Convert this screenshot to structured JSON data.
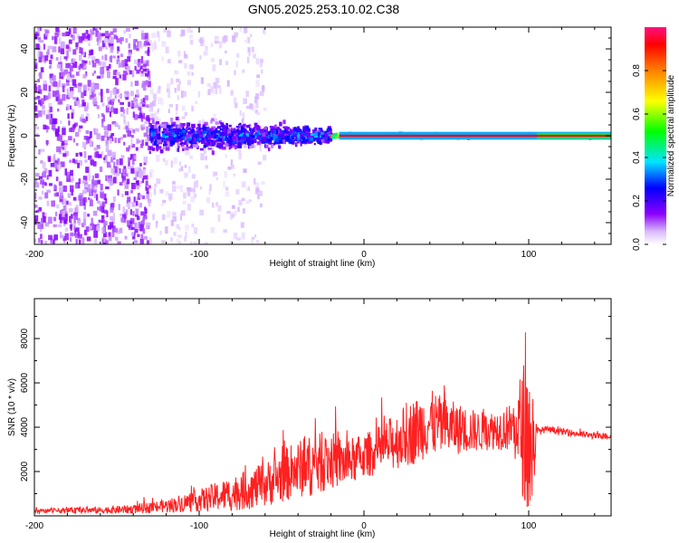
{
  "title": "GN05.2025.253.10.02.C38",
  "chart_data": [
    {
      "type": "heatmap",
      "title": "GN05.2025.253.10.02.C38",
      "xlabel": "Height of straight line (km)",
      "ylabel": "Frequency (Hz)",
      "xlim": [
        -200,
        150
      ],
      "ylim": [
        -50,
        50
      ],
      "xticks": [
        -200,
        -100,
        0,
        100
      ],
      "yticks": [
        -40,
        -20,
        0,
        20,
        40
      ],
      "colorbar": {
        "label": "Normalized spectral amplitude",
        "range": [
          0,
          1
        ],
        "ticks": [
          "0.0",
          "0.2",
          "0.4",
          "0.6",
          "0.8"
        ],
        "tick_values": [
          0,
          0.2,
          0.4,
          0.6,
          0.8
        ],
        "colormap": [
          "#ffffff",
          "#8a00ff",
          "#0000ff",
          "#00e5ff",
          "#00ff00",
          "#ffff00",
          "#ff8000",
          "#ff0000",
          "#ff0080"
        ]
      },
      "description_regions": [
        {
          "x_range": [
            -200,
            -130
          ],
          "freq_spread": 50,
          "amplitude": 0.12
        },
        {
          "x_range": [
            -130,
            -60
          ],
          "freq_spread": 50,
          "amplitude": 0.05
        },
        {
          "x_range": [
            -130,
            -20
          ],
          "freq_spread": 12,
          "amplitude": 0.3
        },
        {
          "x_range": [
            -20,
            105
          ],
          "freq_spread": 1.5,
          "amplitude": 0.85
        },
        {
          "x_range": [
            105,
            150
          ],
          "freq_spread": 1.5,
          "amplitude": 0.95
        }
      ]
    },
    {
      "type": "line",
      "xlabel": "Height of straight line (km)",
      "ylabel": "SNR (10 * v/v)",
      "xlim": [
        -200,
        150
      ],
      "ylim": [
        0,
        9800
      ],
      "xticks": [
        -200,
        -100,
        0,
        100
      ],
      "yticks": [
        2000,
        4000,
        6000,
        8000
      ],
      "series": [
        {
          "name": "SNR",
          "color": "#ff2020",
          "x": [
            -200,
            -180,
            -160,
            -140,
            -120,
            -100,
            -80,
            -60,
            -50,
            -40,
            -30,
            -20,
            -10,
            0,
            10,
            20,
            30,
            40,
            50,
            60,
            70,
            80,
            90,
            98,
            102,
            105,
            110,
            120,
            130,
            140,
            150
          ],
          "y": [
            200,
            250,
            250,
            300,
            450,
            700,
            1000,
            1400,
            1800,
            2100,
            2300,
            2500,
            2400,
            2700,
            3000,
            3400,
            3800,
            4200,
            4000,
            3900,
            3800,
            3900,
            4000,
            3800,
            3000,
            3800,
            3900,
            3800,
            3700,
            3600,
            3600
          ],
          "spread": [
            100,
            120,
            150,
            200,
            300,
            500,
            800,
            1000,
            1200,
            1300,
            1400,
            1300,
            1100,
            1000,
            1100,
            1300,
            1500,
            1500,
            1300,
            1100,
            900,
            900,
            1100,
            3500,
            3500,
            200,
            150,
            150,
            150,
            150,
            150
          ]
        }
      ]
    }
  ]
}
